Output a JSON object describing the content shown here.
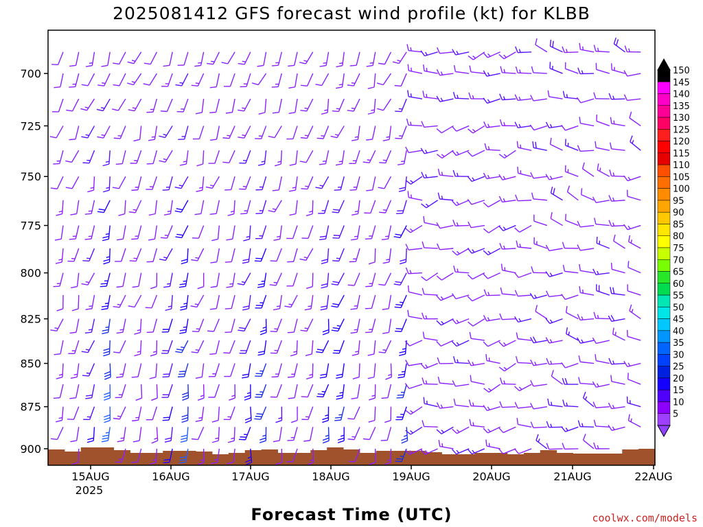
{
  "chart_data": {
    "type": "wind-barb-profile",
    "title": "2025081412 GFS forecast wind profile (kt) for KLBB",
    "xlabel": "Forecast Time (UTC)",
    "credit": "coolwx.com/models",
    "y_axis": {
      "label": "",
      "ticks": [
        700,
        725,
        750,
        775,
        800,
        825,
        850,
        875,
        900
      ],
      "range": [
        910,
        680
      ],
      "scale": "log-pressure"
    },
    "x_axis": {
      "ticks": [
        "15AUG",
        "16AUG",
        "17AUG",
        "18AUG",
        "19AUG",
        "20AUG",
        "21AUG",
        "22AUG"
      ],
      "year_label": "2025"
    },
    "levels_hPa": [
      690,
      700,
      712,
      725,
      737,
      750,
      762,
      775,
      787,
      800,
      812,
      825,
      837,
      850,
      862,
      875,
      887,
      900
    ],
    "colorbar": {
      "units": "kt",
      "ticks": [
        150,
        145,
        140,
        135,
        130,
        125,
        120,
        115,
        110,
        105,
        100,
        95,
        90,
        85,
        80,
        75,
        70,
        65,
        60,
        55,
        50,
        45,
        40,
        35,
        30,
        25,
        20,
        15,
        10,
        5
      ],
      "colors": [
        "#000000",
        "#ff00ff",
        "#ff00c8",
        "#ff0096",
        "#ff0064",
        "#ff1e1e",
        "#ff0000",
        "#e60000",
        "#ff5000",
        "#ff6e00",
        "#ff8c00",
        "#ffa500",
        "#ffc800",
        "#ffe600",
        "#ffff00",
        "#c8ff00",
        "#78ff00",
        "#28e628",
        "#00dc50",
        "#00e6b4",
        "#00e6e6",
        "#00c8ff",
        "#0096ff",
        "#0064ff",
        "#0040ff",
        "#0020e0",
        "#1400ff",
        "#5000ff",
        "#8c00ff",
        "#a040ff"
      ]
    },
    "terrain_color": "#a0522d",
    "wind_phases": [
      {
        "from": 0,
        "to": 0.62,
        "direction_deg": 200,
        "speed_kt": [
          10,
          15,
          25,
          35
        ]
      },
      {
        "from": 0.62,
        "to": 0.83,
        "direction_deg": 270,
        "speed_kt": [
          10,
          15
        ]
      },
      {
        "from": 0.83,
        "to": 1.0,
        "direction_deg": 290,
        "speed_kt": [
          10,
          20
        ]
      }
    ]
  }
}
